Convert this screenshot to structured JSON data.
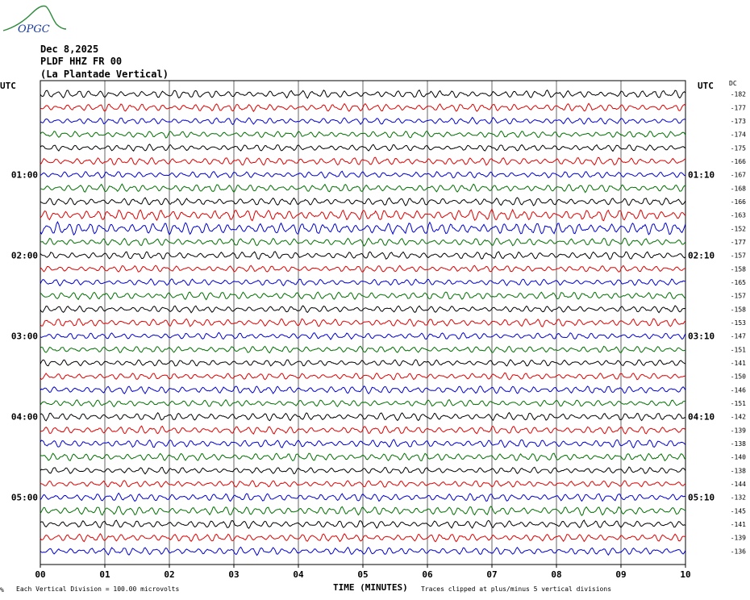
{
  "logo_text": "OPGC",
  "header": {
    "date": "Dec 8,2025",
    "station": "PLDF HHZ FR 00",
    "location": "(La Plantade Vertical)"
  },
  "left_utc_label": "UTC",
  "right_utc_label": "UTC",
  "dc_label": "DC",
  "footer": {
    "scale_note": "Each Vertical Division =  100.00 microvolts",
    "xlabel": "TIME (MINUTES)",
    "clip_note": "Traces clipped at plus/minus 5 vertical divisions",
    "corner_mark": "%"
  },
  "colors": {
    "black": "#000000",
    "red": "#e00000",
    "blue": "#0000d0",
    "green": "#007000"
  },
  "chart_data": {
    "type": "line",
    "xlabel": "TIME (MINUTES)",
    "xlim": [
      0,
      10
    ],
    "x_ticks": [
      "00",
      "01",
      "02",
      "03",
      "04",
      "05",
      "06",
      "07",
      "08",
      "09",
      "10"
    ],
    "trace_color_cycle": [
      "black",
      "red",
      "blue",
      "green"
    ],
    "left_hour_labels": [
      "01:00",
      "02:00",
      "03:00",
      "04:00",
      "05:00"
    ],
    "right_hour_labels": [
      "01:10",
      "02:10",
      "03:10",
      "04:10",
      "05:10"
    ],
    "dc_offsets": [
      -182,
      -177,
      -173,
      -174,
      -175,
      -166,
      -167,
      -168,
      -166,
      -163,
      -152,
      -177,
      -157,
      -158,
      -165,
      -157,
      -158,
      -153,
      -147,
      -151,
      -141,
      -150,
      -146,
      -151,
      -142,
      -139,
      -138,
      -140,
      -138,
      -144,
      -132,
      -145,
      -141,
      -139,
      -136
    ],
    "trace_amplitudes": [
      0.7,
      0.7,
      0.6,
      0.6,
      0.6,
      0.7,
      0.6,
      0.7,
      0.7,
      1.0,
      1.1,
      0.7,
      0.7,
      0.6,
      0.6,
      0.7,
      0.6,
      0.7,
      0.6,
      0.6,
      0.6,
      0.6,
      0.7,
      0.6,
      0.7,
      0.7,
      0.7,
      0.7,
      0.6,
      0.6,
      0.7,
      0.8,
      0.7,
      0.7,
      0.7
    ]
  }
}
